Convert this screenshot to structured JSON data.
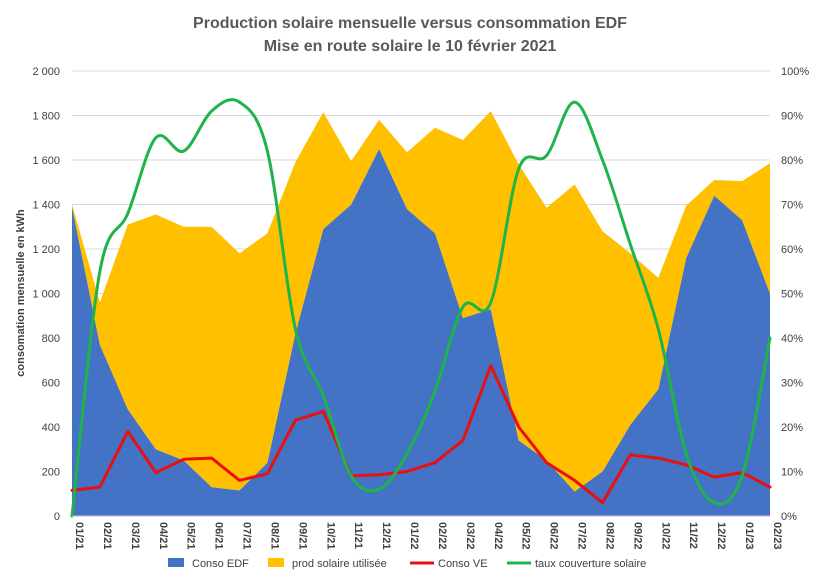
{
  "chart_data": {
    "type": "area",
    "title": "Production solaire mensuelle versus consommation EDF",
    "subtitle": "Mise en route solaire le 10 février 2021",
    "ylabel": "consomation  mensuelle en kWh",
    "ylim": [
      0,
      2000
    ],
    "y_ticks": [
      "0",
      "200",
      "400",
      "600",
      "800",
      "1 000",
      "1 200",
      "1 400",
      "1 600",
      "1 800",
      "2 000"
    ],
    "y2lim": [
      0,
      100
    ],
    "y2_ticks": [
      "0%",
      "10%",
      "20%",
      "30%",
      "40%",
      "50%",
      "60%",
      "70%",
      "80%",
      "90%",
      "100%"
    ],
    "grid": true,
    "legend_position": "bottom",
    "categories": [
      "01/21",
      "02/21",
      "03/21",
      "04/21",
      "05/21",
      "06/21",
      "07/21",
      "08/21",
      "09/21",
      "10/21",
      "11/21",
      "12/21",
      "01/22",
      "02/22",
      "03/22",
      "04/22",
      "05/22",
      "06/22",
      "07/22",
      "08/22",
      "09/22",
      "10/22",
      "11/22",
      "12/22",
      "01/23",
      "02/23"
    ],
    "series": [
      {
        "name": "Conso EDF",
        "type": "area",
        "axis": "left",
        "color": "#4472C4",
        "values": [
          1390,
          770,
          480,
          300,
          250,
          130,
          115,
          240,
          820,
          1290,
          1400,
          1650,
          1380,
          1270,
          890,
          930,
          340,
          250,
          110,
          200,
          410,
          570,
          1160,
          1440,
          1330,
          1000
        ]
      },
      {
        "name": "prod solaire utilisée",
        "type": "area",
        "axis": "left",
        "color": "#FFC000",
        "values": [
          10,
          190,
          830,
          1055,
          1050,
          1170,
          1065,
          1030,
          770,
          525,
          195,
          130,
          255,
          475,
          800,
          890,
          1240,
          1135,
          1380,
          1080,
          770,
          500,
          235,
          70,
          175,
          585
        ]
      },
      {
        "name": "Conso VE",
        "type": "line",
        "axis": "left",
        "color": "#E81010",
        "values": [
          115,
          130,
          380,
          195,
          255,
          260,
          160,
          190,
          430,
          470,
          180,
          185,
          200,
          240,
          340,
          675,
          400,
          240,
          160,
          60,
          275,
          260,
          230,
          175,
          195,
          130
        ]
      },
      {
        "name": "taux couverture solaire",
        "type": "line",
        "axis": "right",
        "color": "#1EB44A",
        "values": [
          0,
          55,
          68,
          85,
          82,
          91,
          93,
          82,
          42,
          27,
          9,
          6,
          14,
          28,
          47,
          48,
          78,
          81,
          93,
          80,
          61,
          42,
          14,
          3,
          9,
          40
        ]
      }
    ]
  }
}
